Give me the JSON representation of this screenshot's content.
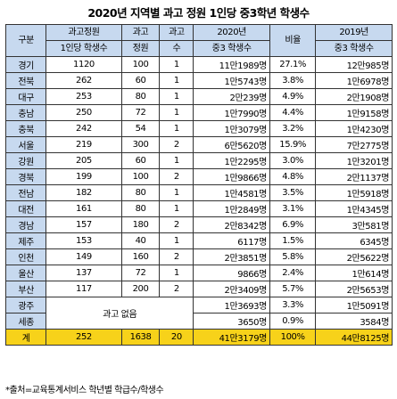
{
  "title": "2020년 지역별 과고 정원 1인당 중3학년 학생수",
  "headers": {
    "region": "구분",
    "per_seat_1": "과고정원",
    "per_seat_2": "1인당 학생수",
    "seats_1": "과고",
    "seats_2": "정원",
    "count_1": "과고",
    "count_2": "수",
    "students2020_1": "2020년",
    "students2020_2": "중3 학생수",
    "ratio": "비율",
    "students2019_1": "2019년",
    "students2019_2": "중3 학생수"
  },
  "rows": [
    {
      "region": "경기",
      "per_seat": "1120",
      "seats": "100",
      "count": "1",
      "s2020": "11만1989명",
      "ratio": "27.1%",
      "s2019": "12만985명"
    },
    {
      "region": "전북",
      "per_seat": "262",
      "seats": "60",
      "count": "1",
      "s2020": "1만5743명",
      "ratio": "3.8%",
      "s2019": "1만6978명"
    },
    {
      "region": "대구",
      "per_seat": "253",
      "seats": "80",
      "count": "1",
      "s2020": "2만239명",
      "ratio": "4.9%",
      "s2019": "2만1908명"
    },
    {
      "region": "충남",
      "per_seat": "250",
      "seats": "72",
      "count": "1",
      "s2020": "1만7990명",
      "ratio": "4.4%",
      "s2019": "1만9158명"
    },
    {
      "region": "충북",
      "per_seat": "242",
      "seats": "54",
      "count": "1",
      "s2020": "1만3079명",
      "ratio": "3.2%",
      "s2019": "1만4230명"
    },
    {
      "region": "서울",
      "per_seat": "219",
      "seats": "300",
      "count": "2",
      "s2020": "6만5620명",
      "ratio": "15.9%",
      "s2019": "7만2775명"
    },
    {
      "region": "강원",
      "per_seat": "205",
      "seats": "60",
      "count": "1",
      "s2020": "1만2295명",
      "ratio": "3.0%",
      "s2019": "1만3201명"
    },
    {
      "region": "경북",
      "per_seat": "199",
      "seats": "100",
      "count": "2",
      "s2020": "1만9866명",
      "ratio": "4.8%",
      "s2019": "2만1137명"
    },
    {
      "region": "전남",
      "per_seat": "182",
      "seats": "80",
      "count": "1",
      "s2020": "1만4581명",
      "ratio": "3.5%",
      "s2019": "1만5918명"
    },
    {
      "region": "대전",
      "per_seat": "161",
      "seats": "80",
      "count": "1",
      "s2020": "1만2849명",
      "ratio": "3.1%",
      "s2019": "1만4345명"
    },
    {
      "region": "경남",
      "per_seat": "157",
      "seats": "180",
      "count": "2",
      "s2020": "2만8342명",
      "ratio": "6.9%",
      "s2019": "3만581명"
    },
    {
      "region": "제주",
      "per_seat": "153",
      "seats": "40",
      "count": "1",
      "s2020": "6117명",
      "ratio": "1.5%",
      "s2019": "6345명"
    },
    {
      "region": "인천",
      "per_seat": "149",
      "seats": "160",
      "count": "2",
      "s2020": "2만3851명",
      "ratio": "5.8%",
      "s2019": "2만5622명"
    },
    {
      "region": "울산",
      "per_seat": "137",
      "seats": "72",
      "count": "1",
      "s2020": "9866명",
      "ratio": "2.4%",
      "s2019": "1만614명"
    },
    {
      "region": "부산",
      "per_seat": "117",
      "seats": "200",
      "count": "2",
      "s2020": "2만3409명",
      "ratio": "5.7%",
      "s2019": "2만5653명"
    }
  ],
  "no_school_label": "과고 없음",
  "no_school_rows": [
    {
      "region": "광주",
      "s2020": "1만3693명",
      "ratio": "3.3%",
      "s2019": "1만5091명"
    },
    {
      "region": "세종",
      "s2020": "3650명",
      "ratio": "0.9%",
      "s2019": "3584명"
    }
  ],
  "total": {
    "label": "계",
    "per_seat": "252",
    "seats": "1638",
    "count": "20",
    "s2020": "41만3179명",
    "ratio": "100%",
    "s2019": "44만8125명"
  },
  "footer": "*출처=교육통계서비스 학년별 학급수/학생수",
  "colors": {
    "header_bg": "#c7d9ef",
    "total_bg": "#f7d21a",
    "border": "#333333"
  }
}
